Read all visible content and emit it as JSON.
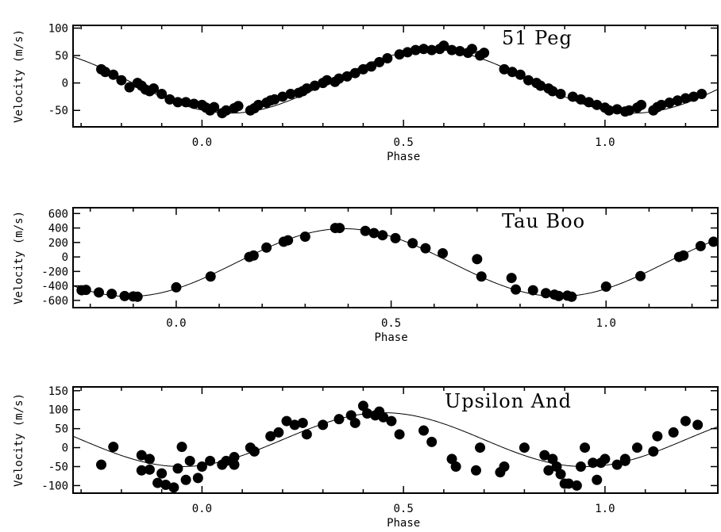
{
  "chart_data": [
    {
      "type": "scatter",
      "title": "51 Peg",
      "xlabel": "Phase",
      "ylabel": "Velocity  (m/s)",
      "xlim": [
        -0.32,
        1.28
      ],
      "ylim": [
        -80,
        105
      ],
      "xticks": [
        0.0,
        0.5,
        1.0
      ],
      "xtick_labels": [
        "0.0",
        "0.5",
        "1.0"
      ],
      "yticks": [
        -50,
        0,
        50,
        100
      ],
      "ytick_labels": [
        "-50",
        "0",
        "50",
        "100"
      ],
      "fit_curve": {
        "K": 58,
        "v0": 3,
        "phase_of_min": 0.07
      },
      "series": [
        {
          "x": [
            -0.25,
            -0.24,
            -0.22,
            -0.2,
            -0.18,
            -0.16,
            -0.15,
            -0.14,
            -0.13,
            -0.12,
            -0.1,
            -0.08,
            -0.06,
            -0.04,
            -0.02,
            0.0,
            0.01,
            0.02,
            0.03,
            0.05,
            0.06,
            0.08,
            0.09,
            0.12,
            0.13,
            0.14,
            0.16,
            0.17,
            0.18,
            0.2,
            0.22,
            0.24,
            0.25,
            0.26,
            0.28,
            0.3,
            0.31,
            0.33,
            0.34,
            0.36,
            0.38,
            0.4,
            0.42,
            0.44,
            0.46,
            0.49,
            0.51,
            0.53,
            0.55,
            0.57,
            0.59,
            0.6,
            0.62,
            0.64,
            0.66,
            0.67,
            0.69,
            0.7,
            0.75,
            0.77,
            0.79,
            0.81,
            0.83,
            0.84,
            0.86,
            0.87,
            0.89,
            0.92,
            0.94,
            0.96,
            0.98,
            1.0,
            1.01,
            1.03,
            1.05,
            1.06,
            1.08,
            1.09,
            1.12,
            1.13,
            1.14,
            1.16,
            1.18,
            1.2,
            1.22,
            1.24
          ],
          "y": [
            25,
            20,
            15,
            5,
            -8,
            0,
            -5,
            -12,
            -15,
            -10,
            -20,
            -30,
            -35,
            -35,
            -38,
            -40,
            -45,
            -50,
            -44,
            -55,
            -50,
            -46,
            -42,
            -50,
            -46,
            -40,
            -36,
            -32,
            -30,
            -25,
            -20,
            -18,
            -15,
            -10,
            -5,
            0,
            5,
            2,
            8,
            12,
            18,
            25,
            30,
            38,
            45,
            52,
            56,
            60,
            62,
            60,
            62,
            68,
            60,
            58,
            55,
            62,
            50,
            55,
            25,
            20,
            15,
            5,
            0,
            -5,
            -10,
            -15,
            -20,
            -25,
            -30,
            -35,
            -40,
            -45,
            -50,
            -48,
            -52,
            -50,
            -45,
            -40,
            -50,
            -44,
            -40,
            -36,
            -32,
            -28,
            -25,
            -20
          ]
        }
      ]
    },
    {
      "type": "scatter",
      "title": "Tau Boo",
      "xlabel": "Phase",
      "ylabel": "Velocity  (m/s)",
      "xlim": [
        -0.24,
        1.26
      ],
      "ylim": [
        -700,
        680
      ],
      "xticks": [
        0.0,
        0.5,
        1.0
      ],
      "xtick_labels": [
        "0.0",
        "0.5",
        "1.0"
      ],
      "yticks": [
        -600,
        -400,
        -200,
        0,
        200,
        400,
        600
      ],
      "ytick_labels": [
        "-600",
        "-400",
        "-200",
        "0",
        "200",
        "400",
        "600"
      ],
      "fit_curve": {
        "K": 468,
        "v0": -78,
        "phase_of_min": 0.89
      },
      "series": [
        {
          "x": [
            -0.22,
            -0.21,
            -0.18,
            -0.15,
            -0.12,
            -0.1,
            -0.09,
            0.0,
            0.08,
            0.17,
            0.18,
            0.21,
            0.25,
            0.26,
            0.3,
            0.37,
            0.38,
            0.44,
            0.46,
            0.48,
            0.51,
            0.55,
            0.58,
            0.62,
            0.7,
            0.71,
            0.78,
            0.79,
            0.83,
            0.86,
            0.88,
            0.89,
            0.91,
            0.92,
            1.0,
            1.08,
            1.17,
            1.18,
            1.22,
            1.25
          ],
          "y": [
            -460,
            -455,
            -490,
            -510,
            -540,
            -545,
            -550,
            -420,
            -270,
            0,
            20,
            130,
            210,
            230,
            280,
            400,
            400,
            360,
            330,
            300,
            260,
            190,
            120,
            50,
            -30,
            -270,
            -290,
            -450,
            -460,
            -500,
            -520,
            -540,
            -535,
            -550,
            -410,
            -265,
            0,
            20,
            150,
            210
          ]
        }
      ]
    },
    {
      "type": "scatter",
      "title": "Upsilon And",
      "xlabel": "Phase",
      "ylabel": "Velocity  (m/s)",
      "xlim": [
        -0.32,
        1.28
      ],
      "ylim": [
        -120,
        160
      ],
      "xticks": [
        0.0,
        0.5,
        1.0
      ],
      "xtick_labels": [
        "0.0",
        "0.5",
        "1.0"
      ],
      "yticks": [
        -100,
        -50,
        0,
        50,
        100,
        150
      ],
      "ytick_labels": [
        "-100",
        "-50",
        "0",
        "50",
        "100",
        "150"
      ],
      "fit_curve": {
        "K": 71,
        "v0": 21,
        "phase_of_min": 0.95
      },
      "series": [
        {
          "x": [
            -0.25,
            -0.22,
            -0.15,
            -0.15,
            -0.13,
            -0.13,
            -0.11,
            -0.1,
            -0.09,
            -0.07,
            -0.06,
            -0.05,
            -0.04,
            -0.03,
            -0.01,
            0.0,
            0.02,
            0.05,
            0.06,
            0.08,
            0.08,
            0.12,
            0.13,
            0.17,
            0.19,
            0.21,
            0.23,
            0.25,
            0.26,
            0.3,
            0.34,
            0.37,
            0.38,
            0.4,
            0.41,
            0.43,
            0.44,
            0.45,
            0.47,
            0.49,
            0.55,
            0.57,
            0.62,
            0.63,
            0.68,
            0.69,
            0.74,
            0.75,
            0.8,
            0.85,
            0.86,
            0.87,
            0.88,
            0.89,
            0.9,
            0.91,
            0.93,
            0.94,
            0.95,
            0.97,
            0.98,
            0.99,
            1.0,
            1.03,
            1.05,
            1.05,
            1.08,
            1.12,
            1.13,
            1.17,
            1.2,
            1.23
          ],
          "y": [
            -45,
            2,
            -20,
            -60,
            -30,
            -58,
            -93,
            -68,
            -98,
            -105,
            -55,
            2,
            -85,
            -35,
            -80,
            -50,
            -35,
            -45,
            -35,
            -25,
            -45,
            0,
            -10,
            30,
            40,
            70,
            60,
            65,
            35,
            60,
            75,
            85,
            65,
            110,
            90,
            85,
            95,
            80,
            70,
            35,
            45,
            15,
            -30,
            -50,
            -60,
            0,
            -65,
            -50,
            0,
            -20,
            -60,
            -30,
            -50,
            -70,
            -95,
            -95,
            -100,
            -50,
            0,
            -40,
            -85,
            -40,
            -30,
            -45,
            -35,
            -30,
            0,
            -10,
            30,
            40,
            70,
            60
          ]
        }
      ]
    }
  ]
}
